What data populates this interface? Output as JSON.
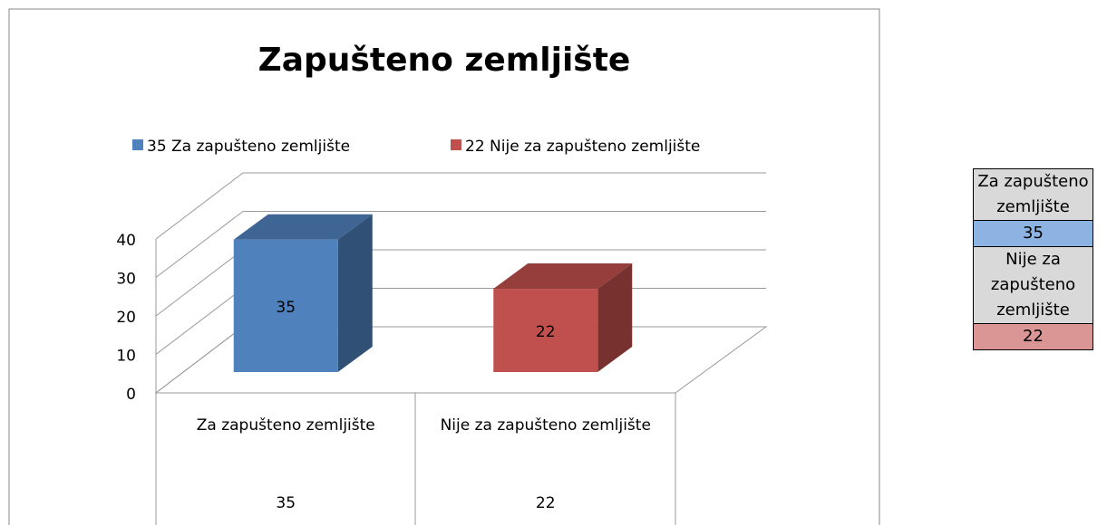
{
  "chart_data": {
    "type": "bar3d",
    "title": "Zapušteno zemljište",
    "categories": [
      "Za zapušteno zemljište",
      "Nije za zapušteno zemljište"
    ],
    "series": [
      {
        "name": "35 Za zapušteno zemljište",
        "color": "#4f81bd",
        "values": [
          35,
          null
        ]
      },
      {
        "name": "22 Nije za zapušteno zemljište",
        "color": "#c0504d",
        "values": [
          null,
          22
        ]
      }
    ],
    "ylim": [
      0,
      40
    ],
    "yticks": [
      0,
      10,
      20,
      30,
      40
    ],
    "grid": true,
    "legend": "top"
  },
  "side_table": {
    "rows": [
      {
        "label": "Za zapušteno zemljište",
        "value": 35,
        "color": "#8db3e2"
      },
      {
        "label": "Nije za zapušteno zemljište",
        "value": 22,
        "color": "#da9694"
      }
    ]
  }
}
